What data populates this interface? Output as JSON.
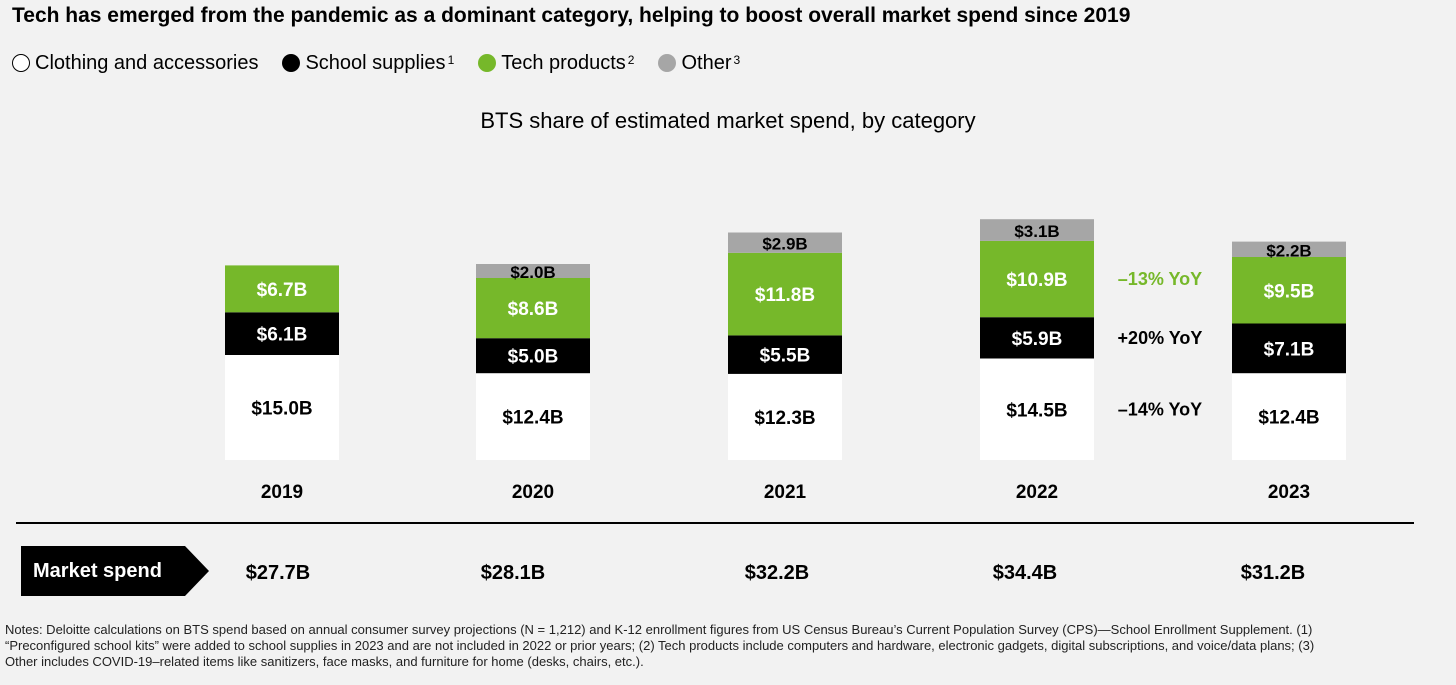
{
  "title": "Tech has emerged from the pandemic as a dominant category, helping to boost overall market spend since 2019",
  "legend": [
    {
      "label": "Clothing and accessories",
      "sup": "",
      "color": "#ffffff"
    },
    {
      "label": "School supplies",
      "sup": "1",
      "color": "#000000"
    },
    {
      "label": "Tech products",
      "sup": "2",
      "color": "#76b82a"
    },
    {
      "label": "Other",
      "sup": "3",
      "color": "#a6a6a6"
    }
  ],
  "chart_data": {
    "type": "bar",
    "stacked": true,
    "title": "BTS share of estimated market spend, by category",
    "unit": "$B",
    "categories": [
      "2019",
      "2020",
      "2021",
      "2022",
      "2023"
    ],
    "series": [
      {
        "name": "Clothing and accessories",
        "color": "#ffffff",
        "text_color": "#000000",
        "values": [
          15.0,
          12.4,
          12.3,
          14.5,
          12.4
        ],
        "labels": [
          "$15.0B",
          "$12.4B",
          "$12.3B",
          "$14.5B",
          "$12.4B"
        ]
      },
      {
        "name": "School supplies",
        "color": "#000000",
        "text_color": "#ffffff",
        "values": [
          6.1,
          5.0,
          5.5,
          5.9,
          7.1
        ],
        "labels": [
          "$6.1B",
          "$5.0B",
          "$5.5B",
          "$5.9B",
          "$7.1B"
        ]
      },
      {
        "name": "Tech products",
        "color": "#76b82a",
        "text_color": "#ffffff",
        "values": [
          6.7,
          8.6,
          11.8,
          10.9,
          9.5
        ],
        "labels": [
          "$6.7B",
          "$8.6B",
          "$11.8B",
          "$10.9B",
          "$9.5B"
        ]
      },
      {
        "name": "Other",
        "color": "#a6a6a6",
        "text_color": "#000000",
        "values": [
          0,
          2.0,
          2.9,
          3.1,
          2.2
        ],
        "labels": [
          "",
          "$2.0B",
          "$2.9B",
          "$3.1B",
          "$2.2B"
        ]
      }
    ],
    "annotations": [
      {
        "text": "–13% YoY",
        "series": "Tech products",
        "color": "#76b82a"
      },
      {
        "text": "+20% YoY",
        "series": "School supplies",
        "color": "#000000"
      },
      {
        "text": "–14% YoY",
        "series": "Clothing and accessories",
        "color": "#000000"
      }
    ],
    "market_spend_label": "Market spend",
    "market_spend": [
      "$27.7B",
      "$28.1B",
      "$32.2B",
      "$34.4B",
      "$31.2B"
    ]
  },
  "notes": "Notes: Deloitte calculations on BTS spend based on annual consumer survey projections (N = 1,212) and K-12 enrollment figures from US Census Bureau’s Current Population Survey (CPS)—School Enrollment Supplement. (1) “Preconfigured school kits” were added to school supplies in 2023 and are not included in 2022 or prior years; (2) Tech products include computers and hardware, electronic gadgets, digital subscriptions, and voice/data plans; (3) Other includes COVID-19–related items like sanitizers, face masks, and furniture for home (desks, chairs, etc.)."
}
